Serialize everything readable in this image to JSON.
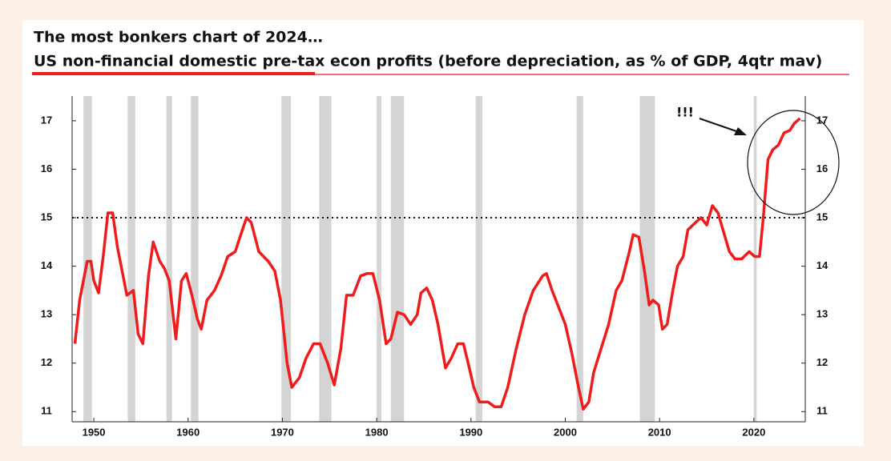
{
  "chart_data": {
    "type": "line",
    "title": "The most bonkers chart of 2024…",
    "subtitle": "US non-financial domestic pre-tax econ profits (before depreciation, as % of GDP, 4qtr mav)",
    "annotation": "!!!",
    "color": "#ee1c1c",
    "recession_color": "#d4d4d4",
    "reference_line": 15,
    "x": [
      1948,
      1948.5,
      1949.3,
      1949.7,
      1950,
      1950.5,
      1951,
      1951.5,
      1952,
      1952.5,
      1953,
      1953.5,
      1954.2,
      1954.7,
      1955.2,
      1955.8,
      1956.3,
      1957,
      1957.5,
      1958,
      1958.7,
      1959.3,
      1959.8,
      1960.4,
      1961,
      1961.4,
      1962,
      1962.8,
      1963.5,
      1964.2,
      1965,
      1965.5,
      1966.2,
      1966.7,
      1967.5,
      1968.5,
      1969.2,
      1969.8,
      1970.5,
      1971,
      1971.8,
      1972.5,
      1973.3,
      1974,
      1974.8,
      1975.5,
      1976.2,
      1976.8,
      1977.5,
      1978.3,
      1979,
      1979.6,
      1980.3,
      1981,
      1981.5,
      1982.2,
      1982.9,
      1983.6,
      1984.3,
      1984.7,
      1985.3,
      1985.9,
      1986.5,
      1987.3,
      1987.9,
      1988.6,
      1989.2,
      1989.7,
      1990.3,
      1990.9,
      1991.8,
      1992.5,
      1993.2,
      1993.9,
      1994.8,
      1995.7,
      1996.6,
      1997.6,
      1998,
      1998.6,
      1999.2,
      2000,
      2000.7,
      2001.4,
      2001.9,
      2002.5,
      2003,
      2003.8,
      2004.6,
      2005.4,
      2006,
      2006.8,
      2007.2,
      2007.8,
      2008.4,
      2008.9,
      2009.3,
      2009.9,
      2010.3,
      2010.8,
      2011.4,
      2011.9,
      2012.5,
      2013,
      2013.8,
      2014.4,
      2015,
      2015.6,
      2016.2,
      2016.8,
      2017.4,
      2018,
      2018.7,
      2019.5,
      2020.1,
      2020.6,
      2021,
      2021.5,
      2022,
      2022.6,
      2023.2,
      2023.8,
      2024.3,
      2024.9
    ],
    "values": [
      12.4,
      13.3,
      14.1,
      14.1,
      13.7,
      13.45,
      14.2,
      15.1,
      15.1,
      14.4,
      13.9,
      13.4,
      13.5,
      12.6,
      12.4,
      13.8,
      14.5,
      14.1,
      13.95,
      13.7,
      12.5,
      13.7,
      13.85,
      13.4,
      12.9,
      12.7,
      13.3,
      13.5,
      13.8,
      14.2,
      14.3,
      14.6,
      15.0,
      14.9,
      14.3,
      14.1,
      13.9,
      13.3,
      12.0,
      11.5,
      11.7,
      12.1,
      12.4,
      12.4,
      12.0,
      11.55,
      12.3,
      13.4,
      13.4,
      13.8,
      13.85,
      13.85,
      13.3,
      12.4,
      12.5,
      13.05,
      13.0,
      12.8,
      13.0,
      13.45,
      13.55,
      13.3,
      12.8,
      11.9,
      12.1,
      12.4,
      12.4,
      12.0,
      11.5,
      11.2,
      11.2,
      11.1,
      11.1,
      11.5,
      12.3,
      13.0,
      13.5,
      13.8,
      13.85,
      13.5,
      13.2,
      12.8,
      12.2,
      11.5,
      11.05,
      11.2,
      11.8,
      12.3,
      12.8,
      13.5,
      13.7,
      14.3,
      14.65,
      14.6,
      13.9,
      13.2,
      13.3,
      13.2,
      12.7,
      12.8,
      13.5,
      14.0,
      14.2,
      14.75,
      14.9,
      15.0,
      14.85,
      15.25,
      15.1,
      14.7,
      14.3,
      14.15,
      14.15,
      14.3,
      14.2,
      14.2,
      15.0,
      16.2,
      16.4,
      16.5,
      16.75,
      16.8,
      16.95,
      17.05
    ],
    "recessions": [
      [
        1948.9,
        1949.8
      ],
      [
        1953.6,
        1954.4
      ],
      [
        1957.7,
        1958.3
      ],
      [
        1960.3,
        1961.1
      ],
      [
        1969.9,
        1970.9
      ],
      [
        1973.9,
        1975.2
      ],
      [
        1980.0,
        1980.5
      ],
      [
        1981.5,
        1982.9
      ],
      [
        1990.5,
        1991.2
      ],
      [
        2001.2,
        2001.9
      ],
      [
        2007.9,
        2009.5
      ],
      [
        2020.0,
        2020.3
      ]
    ],
    "xlim": [
      1947.7,
      2025.45
    ],
    "xticks": [
      1950,
      1960,
      1970,
      1980,
      1990,
      2000,
      2010,
      2020
    ],
    "ylim": [
      10.79,
      17.51
    ],
    "yticks": [
      11,
      12,
      13,
      14,
      15,
      16,
      17
    ],
    "y2lim": [
      10.79,
      17.51
    ],
    "y2ticks": [
      11,
      12,
      13,
      14,
      15,
      16,
      17
    ]
  }
}
